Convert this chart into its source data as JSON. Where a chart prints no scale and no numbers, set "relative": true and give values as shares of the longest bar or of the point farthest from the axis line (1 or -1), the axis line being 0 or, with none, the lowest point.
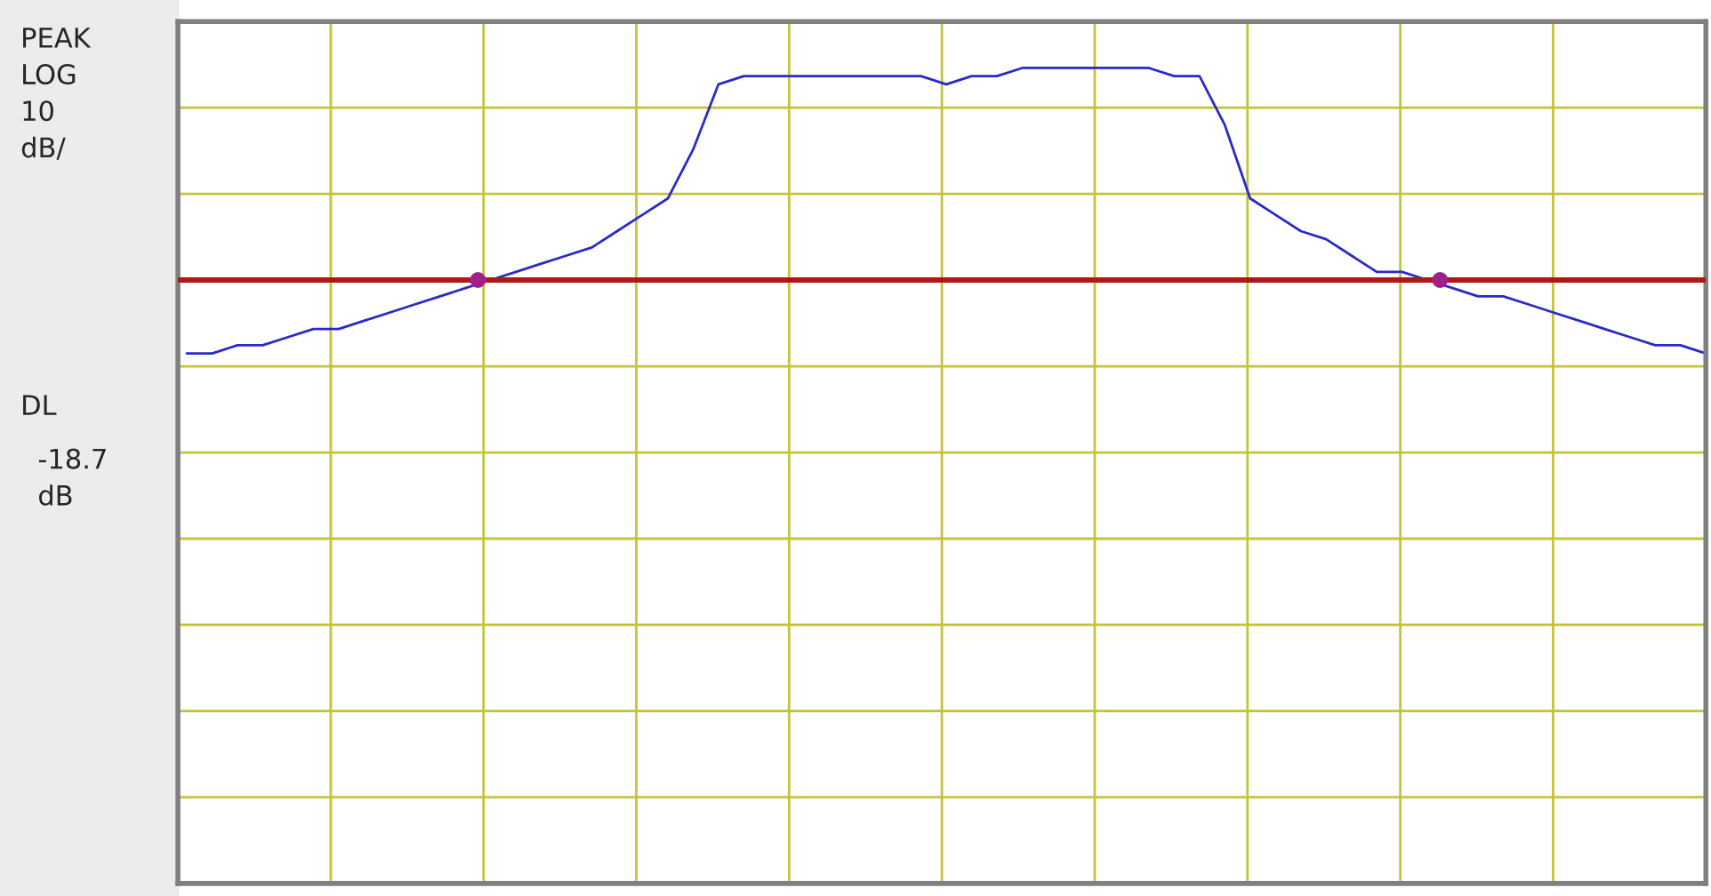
{
  "chart_data": {
    "type": "line",
    "relative": true,
    "tick_labels": false,
    "grid": true,
    "legend": false,
    "categories": [
      null,
      null,
      null,
      null,
      null,
      null,
      null,
      null,
      null,
      null,
      null,
      null,
      null,
      null,
      null,
      null,
      null,
      null,
      null,
      null,
      null,
      null,
      null,
      null,
      null,
      null,
      null,
      null,
      null,
      null,
      null,
      null,
      null,
      null,
      null,
      null,
      null,
      null,
      null,
      null,
      null,
      null,
      null,
      null,
      null,
      null,
      null,
      null,
      null,
      null,
      null,
      null,
      null,
      null,
      null,
      null,
      null,
      null,
      null,
      null,
      null
    ],
    "series": [
      {
        "color": "#2a2ac8",
        "values": [
          0.65,
          0.65,
          0.66,
          0.66,
          0.67,
          0.68,
          0.68,
          0.69,
          0.7,
          0.71,
          0.72,
          0.73,
          0.74,
          0.75,
          0.76,
          0.77,
          0.78,
          0.8,
          0.82,
          0.84,
          0.9,
          0.98,
          0.99,
          0.99,
          0.99,
          0.99,
          0.99,
          0.99,
          0.99,
          0.99,
          0.98,
          0.99,
          0.99,
          1.0,
          1.0,
          1.0,
          1.0,
          1.0,
          1.0,
          0.99,
          0.99,
          0.93,
          0.84,
          0.82,
          0.8,
          0.79,
          0.77,
          0.75,
          0.75,
          0.74,
          0.73,
          0.72,
          0.72,
          0.71,
          0.7,
          0.69,
          0.68,
          0.67,
          0.66,
          0.66,
          0.65
        ]
      }
    ],
    "ref_lines": [
      {
        "axis": "y",
        "value": 0.74,
        "color": "#b01818",
        "line_style": "solid"
      }
    ],
    "annotations": [
      "PEAK\nLOG\n10\ndB/",
      "DL",
      "-18.7\ndB"
    ]
  }
}
